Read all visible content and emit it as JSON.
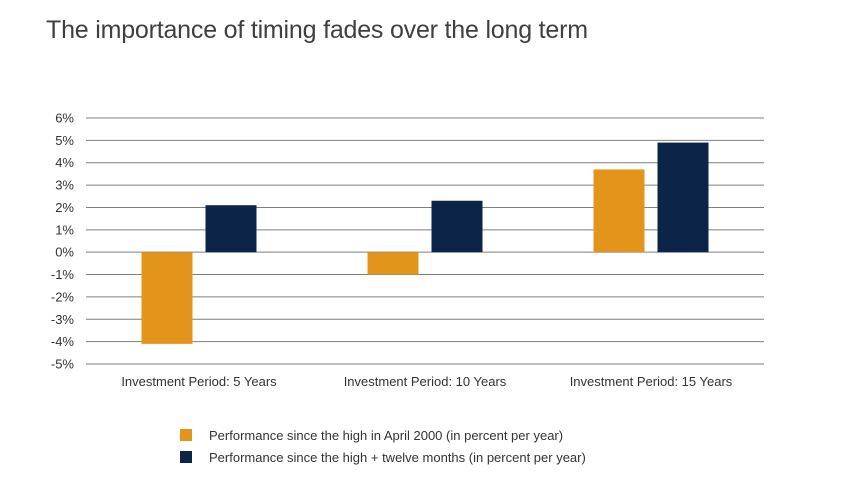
{
  "title": "The importance of timing fades over the long term",
  "colors": {
    "series1": "#e3941a",
    "series2": "#0c2447",
    "grid": "#7f7f7f",
    "text": "#333333"
  },
  "chart_data": {
    "type": "bar",
    "categories": [
      "Investment Period: 5 Years",
      "Investment Period: 10 Years",
      "Investment Period: 15 Years"
    ],
    "series": [
      {
        "name": "Performance since the high in April 2000 (in percent per year)",
        "values": [
          -4.1,
          -1.0,
          3.7
        ]
      },
      {
        "name": "Performance since the high + twelve months (in percent per year)",
        "values": [
          2.1,
          2.3,
          4.9
        ]
      }
    ],
    "ylim": [
      -5,
      6
    ],
    "yticks": [
      6,
      5,
      4,
      3,
      2,
      1,
      0,
      -1,
      -2,
      -3,
      -4,
      -5
    ],
    "ytick_labels": [
      "6%",
      "5%",
      "4%",
      "3%",
      "2%",
      "1%",
      "0%",
      "-1%",
      "-2%",
      "-3%",
      "-4%",
      "-5%"
    ],
    "grid": true,
    "legend_position": "bottom"
  }
}
